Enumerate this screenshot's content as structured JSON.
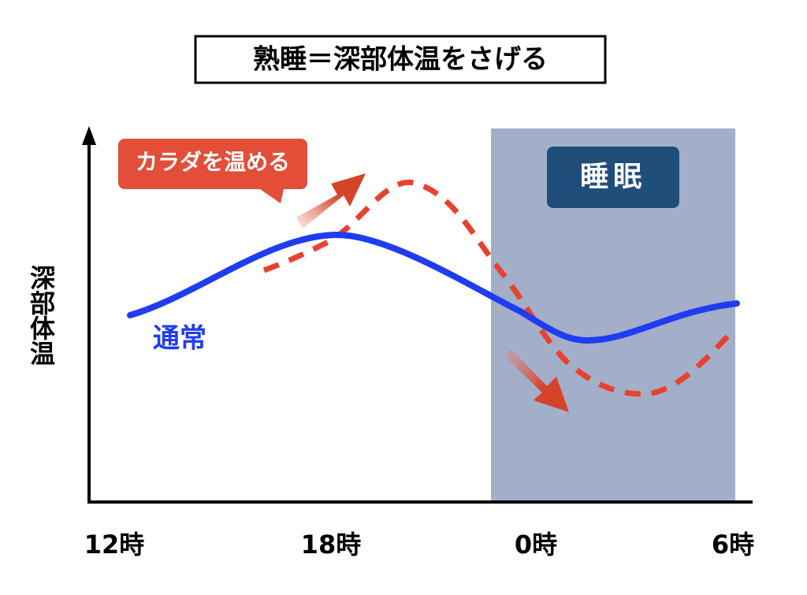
{
  "title": "熟睡＝深部体温をさげる",
  "y_axis_label": "深部体温",
  "x_labels": [
    "12時",
    "18時",
    "0時",
    "6時"
  ],
  "labels": {
    "normal": "通常",
    "warm": "カラダを温める",
    "sleep": "睡眠"
  }
}
